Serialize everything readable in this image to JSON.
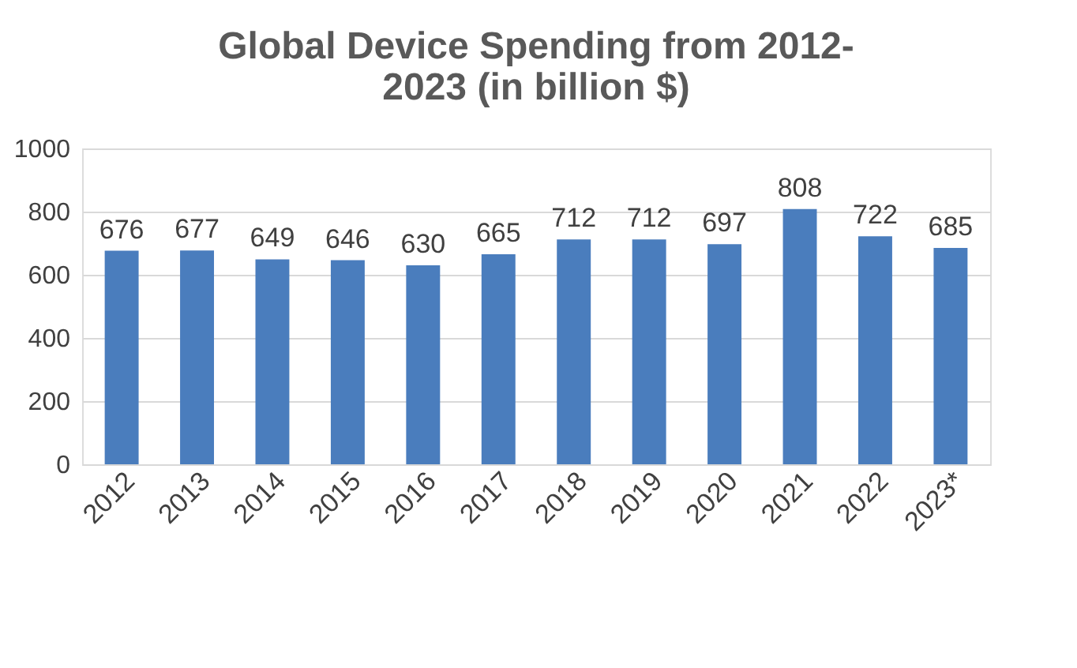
{
  "chart_data": {
    "type": "bar",
    "title": "Global Device Spending from 2012-2023 (in billion $)",
    "categories": [
      "2012",
      "2013",
      "2014",
      "2015",
      "2016",
      "2017",
      "2018",
      "2019",
      "2020",
      "2021",
      "2022",
      "2023*"
    ],
    "values": [
      676,
      677,
      649,
      646,
      630,
      665,
      712,
      712,
      697,
      808,
      722,
      685
    ],
    "color": "#4a7dbd",
    "ylim": [
      0,
      1000
    ],
    "yticks": [
      0,
      200,
      400,
      600,
      800,
      1000
    ],
    "grid": "y",
    "data_labels": true
  }
}
